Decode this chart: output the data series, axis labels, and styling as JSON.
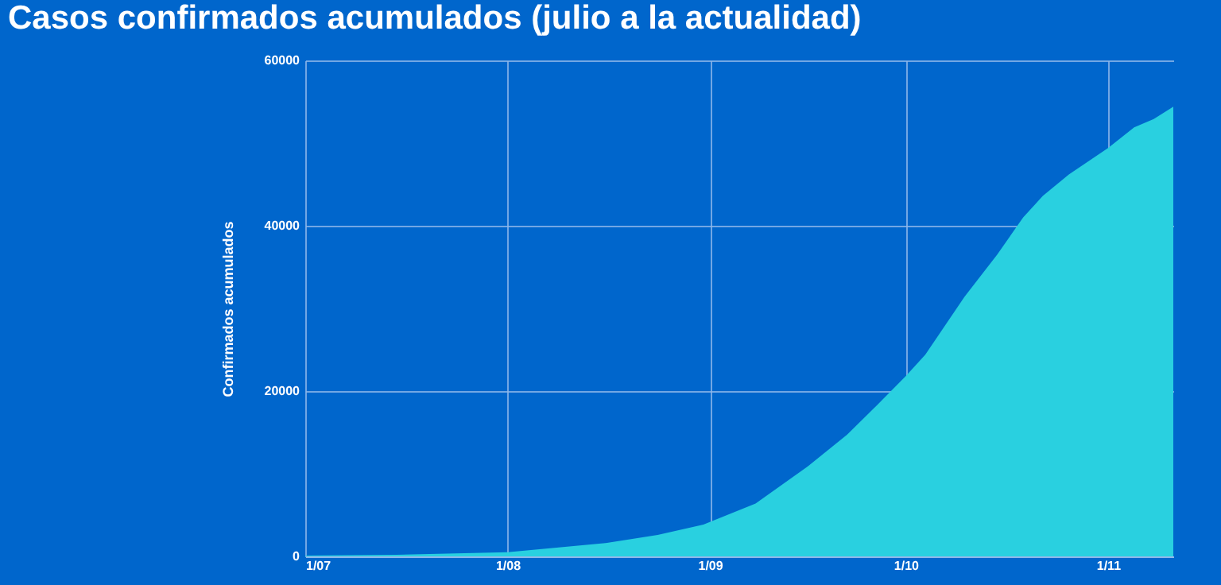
{
  "chart_data": {
    "type": "area",
    "title": "Casos confirmados acumulados (julio a la actualidad)",
    "ylabel": "Confirmados acumulados",
    "x": [
      "--07-01",
      "--07-15",
      "--08-01",
      "--08-16",
      "--08-24",
      "--08-31",
      "--09-08",
      "--09-16",
      "--09-22",
      "--09-27",
      "--10-01",
      "--10-04",
      "--10-10",
      "--10-15",
      "--10-19",
      "--10-22",
      "--10-26",
      "--11-01",
      "--11-05",
      "--11-08",
      "--11-11"
    ],
    "series": [
      {
        "color": "#29d0e0",
        "values": [
          100,
          200,
          500,
          1600,
          2600,
          3850,
          6400,
          10900,
          14700,
          18600,
          21800,
          24400,
          31400,
          36500,
          41000,
          43600,
          46200,
          49400,
          51900,
          52900,
          54400
        ]
      }
    ],
    "xlim": [
      "--07-01",
      "--11-11"
    ],
    "xticks": [
      {
        "value": "--07-01",
        "label": "1/07"
      },
      {
        "value": "--08-01",
        "label": "1/08"
      },
      {
        "value": "--09-01",
        "label": "1/09"
      },
      {
        "value": "--10-01",
        "label": "1/10"
      },
      {
        "value": "--11-01",
        "label": "1/11"
      }
    ],
    "ylim": [
      0,
      60000
    ],
    "yticks": [
      0,
      20000,
      40000,
      60000
    ],
    "grid": true
  }
}
